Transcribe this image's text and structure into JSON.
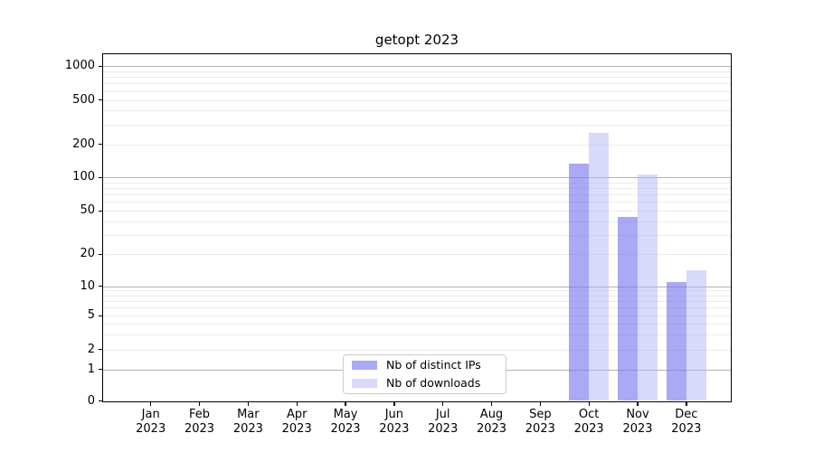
{
  "title": "getopt 2023",
  "chart_data": {
    "type": "bar",
    "title": "getopt 2023",
    "categories": [
      "Jan",
      "Feb",
      "Mar",
      "Apr",
      "May",
      "Jun",
      "Jul",
      "Aug",
      "Sep",
      "Oct",
      "Nov",
      "Dec"
    ],
    "x_tick_year": "2023",
    "series": [
      {
        "name": "Nb of distinct IPs",
        "color": "rgba(112,112,238,0.60)",
        "legend_color": "#a9a9f4",
        "values": [
          0,
          0,
          0,
          0,
          0,
          0,
          0,
          0,
          0,
          133,
          44,
          11
        ]
      },
      {
        "name": "Nb of downloads",
        "color": "rgba(176,176,244,0.48)",
        "legend_color": "#d9d9f9",
        "values": [
          0,
          0,
          0,
          0,
          0,
          0,
          0,
          0,
          0,
          253,
          105,
          14
        ]
      }
    ],
    "yticks": [
      0,
      1,
      2,
      5,
      10,
      20,
      50,
      100,
      200,
      500,
      1000
    ],
    "ylim": [
      0,
      1000
    ],
    "yscale": "symlog",
    "grid": true,
    "legend_position": "lower center"
  },
  "colors": {
    "grid_major": "#b3b3b3",
    "grid_minor": "#ececec",
    "axis": "#000000",
    "text": "#000000",
    "legend_border": "#cccccc"
  }
}
